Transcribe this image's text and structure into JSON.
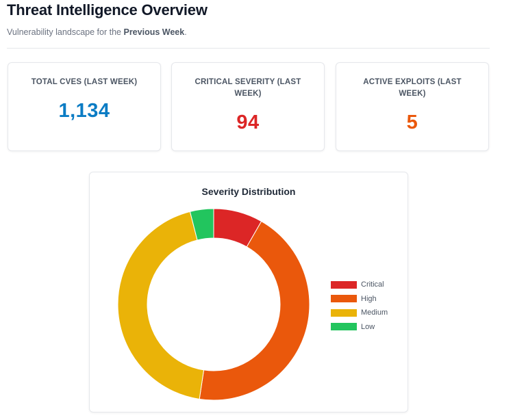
{
  "header": {
    "title": "Threat Intelligence Overview",
    "subtitle_prefix": "Vulnerability landscape for the ",
    "subtitle_period": "Previous Week",
    "subtitle_suffix": "."
  },
  "stats": [
    {
      "label": "TOTAL CVES (LAST WEEK)",
      "value": "1,134",
      "color": "#0b7cc4"
    },
    {
      "label": "CRITICAL SEVERITY (LAST WEEK)",
      "value": "94",
      "color": "#dc2626"
    },
    {
      "label": "ACTIVE EXPLOITS (LAST WEEK)",
      "value": "5",
      "color": "#ea580c"
    }
  ],
  "chart_data": {
    "type": "pie",
    "title": "Severity Distribution",
    "categories": [
      "Critical",
      "High",
      "Medium",
      "Low"
    ],
    "values": [
      94,
      500,
      495,
      45
    ],
    "colors": [
      "#dc2626",
      "#ea580c",
      "#eab308",
      "#22c55e"
    ],
    "donut": true,
    "legend": "right"
  }
}
